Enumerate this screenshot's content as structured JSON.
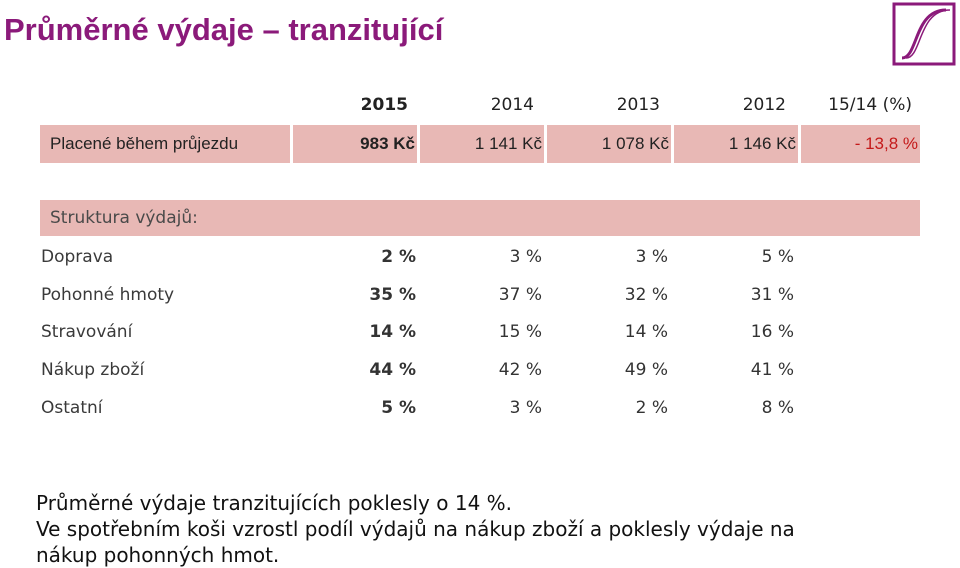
{
  "title": "Průměrné výdaje – tranzitující",
  "colors": {
    "title": "#8b1a7a",
    "highlight_bar": "#e8b8b5",
    "negative": "#c41a1a",
    "positive": "#2aa84a"
  },
  "header": {
    "y2015": "2015",
    "y2014": "2014",
    "y2013": "2013",
    "y2012": "2012",
    "change": "15/14 (%)"
  },
  "paid": {
    "label": "Placené během průjezdu",
    "y2015": "983 Kč",
    "y2014": "1 141 Kč",
    "y2013": "1 078 Kč",
    "y2012": "1 146 Kč",
    "change": "- 13,8 %"
  },
  "structure": {
    "heading": "Struktura výdajů:",
    "rows": [
      {
        "label": "Doprava",
        "y2015": "2 %",
        "y2014": "3 %",
        "y2013": "3 %",
        "y2012": "5 %"
      },
      {
        "label": "Pohonné hmoty",
        "y2015": "35 %",
        "y2014": "37 %",
        "y2013": "32 %",
        "y2012": "31 %"
      },
      {
        "label": "Stravování",
        "y2015": "14 %",
        "y2014": "15 %",
        "y2013": "14 %",
        "y2012": "16 %"
      },
      {
        "label": "Nákup zboží",
        "y2015": "44 %",
        "y2014": "42 %",
        "y2013": "49 %",
        "y2012": "41 %"
      },
      {
        "label": "Ostatní",
        "y2015": "5 %",
        "y2014": "3 %",
        "y2013": "2 %",
        "y2012": "8 %"
      }
    ]
  },
  "summary": {
    "line1": "Průměrné výdaje tranzitujících poklesly o 14 %.",
    "line2": "Ve spotřebním koši vzrostl podíl výdajů na nákup zboží a poklesly výdaje na",
    "line3": "nákup pohonných hmot."
  },
  "logo": {
    "icon": "university-logo-icon"
  }
}
